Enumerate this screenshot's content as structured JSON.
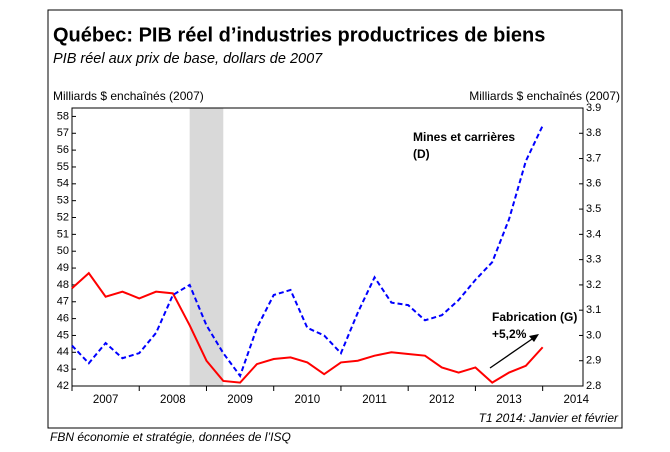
{
  "chart_data": {
    "type": "line",
    "title": "Québec: PIB réel d’industries productrices de biens",
    "subtitle": "PIB réel aux prix de base, dollars de 2007",
    "ylabel": "Milliards $ enchaînés (2007)",
    "y2label": "Milliards $ enchaînés (2007)",
    "x": [
      2007,
      2007.25,
      2007.5,
      2007.75,
      2008,
      2008.25,
      2008.5,
      2008.75,
      2009,
      2009.25,
      2009.5,
      2009.75,
      2010,
      2010.25,
      2010.5,
      2010.75,
      2011,
      2011.25,
      2011.5,
      2011.75,
      2012,
      2012.25,
      2012.5,
      2012.75,
      2013,
      2013.25,
      2013.5,
      2013.75,
      2014
    ],
    "xlim": [
      2007,
      2014.6
    ],
    "xticks": [
      2007,
      2008,
      2009,
      2010,
      2011,
      2012,
      2013,
      2014
    ],
    "ylim": [
      42,
      58.5
    ],
    "yticks": [
      42,
      43,
      44,
      45,
      46,
      47,
      48,
      49,
      50,
      51,
      52,
      53,
      54,
      55,
      56,
      57,
      58
    ],
    "y2lim": [
      2.8,
      3.9
    ],
    "y2ticks": [
      2.8,
      2.9,
      {
        "value": 3,
        "label": "3.0"
      },
      3.1,
      3.2,
      3.3,
      3.4,
      3.5,
      3.6,
      3.7,
      3.8,
      3.9
    ],
    "shaded_region": [
      2008.75,
      2009.25
    ],
    "series": [
      {
        "color": "#ff0000",
        "values": [
          47.8,
          48.7,
          47.3,
          47.6,
          47.2,
          47.6,
          47.5,
          45.6,
          43.5,
          42.3,
          42.2,
          43.3,
          43.6,
          43.7,
          43.4,
          42.7,
          43.4,
          43.5,
          43.8,
          44.0,
          43.9,
          43.8,
          43.1,
          42.8,
          43.1,
          42.2,
          42.8,
          43.2,
          44.3
        ]
      },
      {
        "color": "#0000ff",
        "axis": "y2",
        "dashed": true,
        "values": [
          2.96,
          2.89,
          2.97,
          2.91,
          2.93,
          3.01,
          3.16,
          3.2,
          3.04,
          2.93,
          2.84,
          3.03,
          3.16,
          3.18,
          3.03,
          3.0,
          2.93,
          3.09,
          3.23,
          3.13,
          3.12,
          3.06,
          3.08,
          3.14,
          3.22,
          3.29,
          3.46,
          3.69,
          3.83
        ]
      }
    ],
    "annotations": [
      {
        "lines": [
          "Mines et carrières",
          "(D)"
        ]
      },
      {
        "lines": [
          "Fabrication (G)",
          "+5,2%"
        ]
      }
    ],
    "note": "T1 2014: Janvier et février",
    "source": "FBN économie et stratégie, données de l’ISQ"
  }
}
